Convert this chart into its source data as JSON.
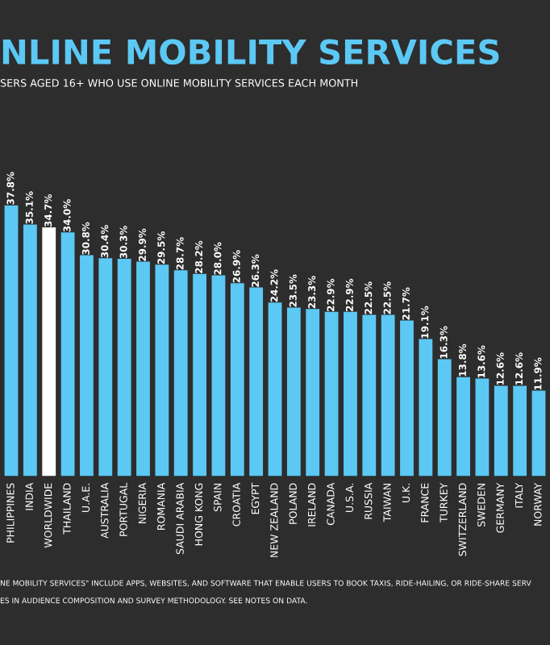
{
  "chart_data": {
    "type": "bar",
    "title": "NLINE MOBILITY SERVICES",
    "subtitle": "SERS AGED 16+ WHO USE ONLINE MOBILITY SERVICES EACH MONTH",
    "categories": [
      "PHILIPPINES",
      "INDIA",
      "WORLDWIDE",
      "THAILAND",
      "U.A.E.",
      "AUSTRALIA",
      "PORTUGAL",
      "NIGERIA",
      "ROMANIA",
      "SAUDI ARABIA",
      "HONG KONG",
      "SPAIN",
      "CROATIA",
      "EGYPT",
      "NEW ZEALAND",
      "POLAND",
      "IRELAND",
      "CANADA",
      "U.S.A.",
      "RUSSIA",
      "TAIWAN",
      "U.K.",
      "FRANCE",
      "TURKEY",
      "SWITZERLAND",
      "SWEDEN",
      "GERMANY",
      "ITALY",
      "NORWAY"
    ],
    "values": [
      37.8,
      35.1,
      34.7,
      34.0,
      30.8,
      30.4,
      30.3,
      29.9,
      29.5,
      28.7,
      28.2,
      28.0,
      26.9,
      26.3,
      24.2,
      23.5,
      23.3,
      22.9,
      22.9,
      22.5,
      22.5,
      21.7,
      19.1,
      16.3,
      13.8,
      13.6,
      12.6,
      12.6,
      11.9
    ],
    "value_labels": [
      "37.8%",
      "35.1%",
      "34.7%",
      "34.0%",
      "30.8%",
      "30.4%",
      "30.3%",
      "29.9%",
      "29.5%",
      "28.7%",
      "28.2%",
      "28.0%",
      "26.9%",
      "26.3%",
      "24.2%",
      "23.5%",
      "23.3%",
      "22.9%",
      "22.9%",
      "22.5%",
      "22.5%",
      "21.7%",
      "19.1%",
      "16.3%",
      "13.8%",
      "13.6%",
      "12.6%",
      "12.6%",
      "11.9%"
    ],
    "colors": [
      "#5cc8f4",
      "#5cc8f4",
      "#ffffff",
      "#5cc8f4",
      "#5cc8f4",
      "#5cc8f4",
      "#5cc8f4",
      "#5cc8f4",
      "#5cc8f4",
      "#5cc8f4",
      "#5cc8f4",
      "#5cc8f4",
      "#5cc8f4",
      "#5cc8f4",
      "#5cc8f4",
      "#5cc8f4",
      "#5cc8f4",
      "#5cc8f4",
      "#5cc8f4",
      "#5cc8f4",
      "#5cc8f4",
      "#5cc8f4",
      "#5cc8f4",
      "#5cc8f4",
      "#5cc8f4",
      "#5cc8f4",
      "#5cc8f4",
      "#5cc8f4",
      "#5cc8f4"
    ],
    "annotations": [
      "NE MOBILITY SERVICES\" INCLUDE APPS, WEBSITES, AND SOFTWARE THAT ENABLE USERS TO BOOK TAXIS, RIDE-HAILING, OR RIDE-SHARE SERV",
      "ES IN AUDIENCE COMPOSITION AND SURVEY METHODOLOGY. SEE NOTES ON DATA."
    ],
    "tick_labels": "x"
  }
}
